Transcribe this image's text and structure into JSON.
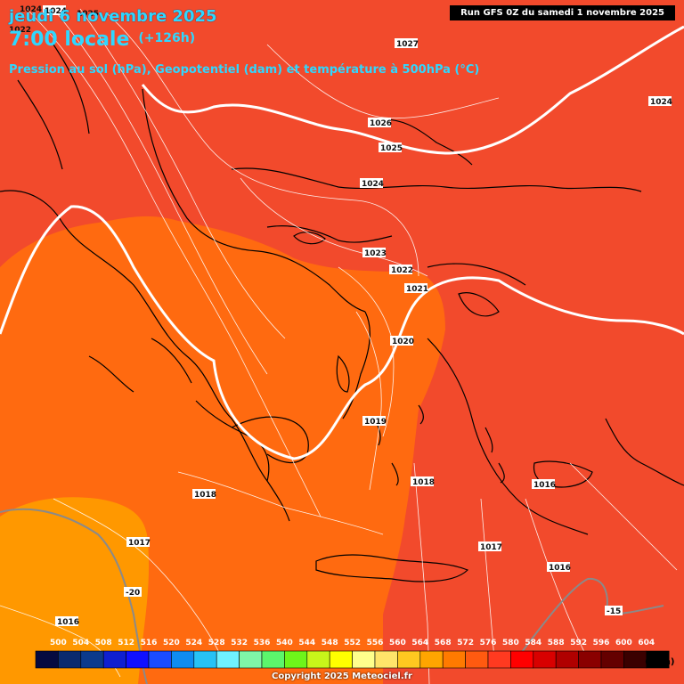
{
  "header": {
    "date": "jeudi 6 novembre 2025",
    "time": "7:00 locale",
    "lead": "(+126h)",
    "subtitle": "Pression au sol (hPa), Geopotentiel (dam) et température à 500hPa (°C)",
    "run": "Run GFS 0Z du samedi 1 novembre 2025"
  },
  "isobar_labels": [
    "1027",
    "1026",
    "1025",
    "1024",
    "1024",
    "1024",
    "1023",
    "1022",
    "1021",
    "1020",
    "1019",
    "1018",
    "1018",
    "1017",
    "1017",
    "1016",
    "1016",
    "1016"
  ],
  "temp_labels": [
    "-20",
    "-15"
  ],
  "edge_labels": [
    "1024",
    "1025",
    "1022"
  ],
  "legend": {
    "values": [
      "500",
      "504",
      "508",
      "512",
      "516",
      "520",
      "524",
      "528",
      "532",
      "536",
      "540",
      "544",
      "548",
      "552",
      "556",
      "560",
      "564",
      "568",
      "572",
      "576",
      "580",
      "584",
      "588",
      "592",
      "596",
      "600",
      "604"
    ],
    "colors": [
      "#050a40",
      "#0a2a6e",
      "#0c3a8c",
      "#0f1fd0",
      "#1010ff",
      "#1a4cff",
      "#0f8cf0",
      "#27c2f5",
      "#6ff2ff",
      "#7ff5a8",
      "#5cf56c",
      "#6ef51a",
      "#c8f51a",
      "#ffff00",
      "#ffff8c",
      "#ffe46a",
      "#ffc820",
      "#ffa500",
      "#ff7a00",
      "#ff5a10",
      "#ff3a20",
      "#ff0000",
      "#d80000",
      "#b00000",
      "#8a0000",
      "#640000",
      "#3a0000",
      "#000000"
    ],
    "unit": "(dam)"
  },
  "copyright": "Copyright 2025 Meteociel.fr"
}
